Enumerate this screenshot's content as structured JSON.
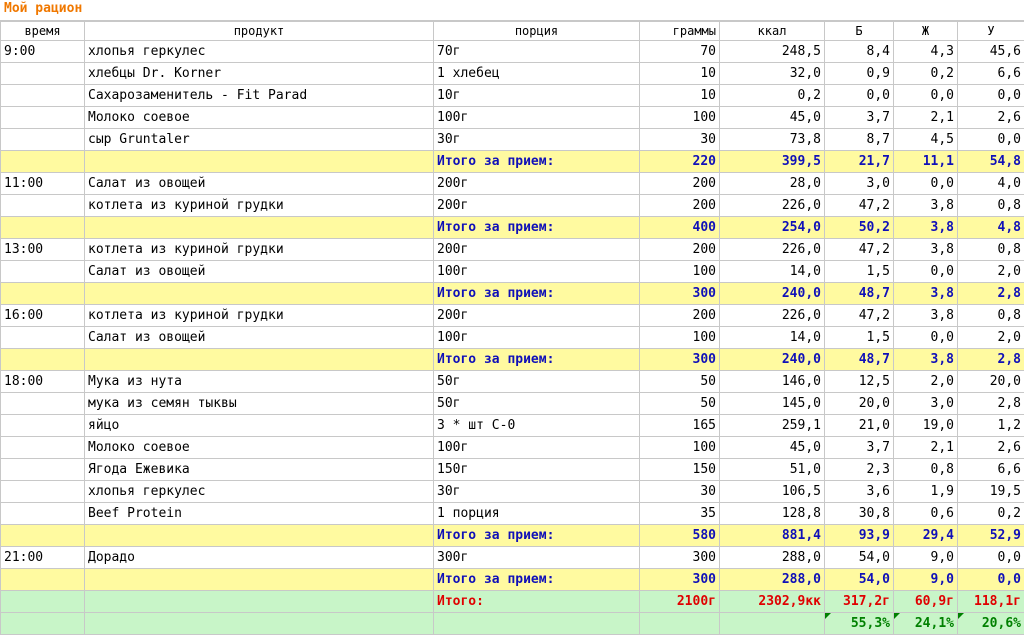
{
  "title": "Мой рацион",
  "columns": [
    "время",
    "продукт",
    "порция",
    "граммы",
    "ккал",
    "Б",
    "Ж",
    "У"
  ],
  "meals": [
    {
      "time": "9:00",
      "items": [
        [
          "хлопья геркулес",
          "70г",
          "70",
          "248,5",
          "8,4",
          "4,3",
          "45,6"
        ],
        [
          "хлебцы Dr. Korner",
          "1 хлебец",
          "10",
          "32,0",
          "0,9",
          "0,2",
          "6,6"
        ],
        [
          "Сахарозаменитель - Fit Parad",
          "10г",
          "10",
          "0,2",
          "0,0",
          "0,0",
          "0,0"
        ],
        [
          "Молоко соевое",
          "100г",
          "100",
          "45,0",
          "3,7",
          "2,1",
          "2,6"
        ],
        [
          "сыр Gruntaler",
          "30г",
          "30",
          "73,8",
          "8,7",
          "4,5",
          "0,0"
        ]
      ],
      "subtotal": {
        "label": "Итого за прием:",
        "grams": "220",
        "kcal": "399,5",
        "b": "21,7",
        "zh": "11,1",
        "u": "54,8"
      }
    },
    {
      "time": "11:00",
      "items": [
        [
          "Салат из овощей",
          "200г",
          "200",
          "28,0",
          "3,0",
          "0,0",
          "4,0"
        ],
        [
          "котлета из куриной грудки",
          "200г",
          "200",
          "226,0",
          "47,2",
          "3,8",
          "0,8"
        ]
      ],
      "subtotal": {
        "label": "Итого за прием:",
        "grams": "400",
        "kcal": "254,0",
        "b": "50,2",
        "zh": "3,8",
        "u": "4,8"
      }
    },
    {
      "time": "13:00",
      "items": [
        [
          "котлета из куриной грудки",
          "200г",
          "200",
          "226,0",
          "47,2",
          "3,8",
          "0,8"
        ],
        [
          "Салат из овощей",
          "100г",
          "100",
          "14,0",
          "1,5",
          "0,0",
          "2,0"
        ]
      ],
      "subtotal": {
        "label": "Итого за прием:",
        "grams": "300",
        "kcal": "240,0",
        "b": "48,7",
        "zh": "3,8",
        "u": "2,8"
      }
    },
    {
      "time": "16:00",
      "items": [
        [
          "котлета из куриной грудки",
          "200г",
          "200",
          "226,0",
          "47,2",
          "3,8",
          "0,8"
        ],
        [
          "Салат из овощей",
          "100г",
          "100",
          "14,0",
          "1,5",
          "0,0",
          "2,0"
        ]
      ],
      "subtotal": {
        "label": "Итого за прием:",
        "grams": "300",
        "kcal": "240,0",
        "b": "48,7",
        "zh": "3,8",
        "u": "2,8"
      }
    },
    {
      "time": "18:00",
      "items": [
        [
          "Мука из нута",
          "50г",
          "50",
          "146,0",
          "12,5",
          "2,0",
          "20,0"
        ],
        [
          "мука из семян тыквы",
          "50г",
          "50",
          "145,0",
          "20,0",
          "3,0",
          "2,8"
        ],
        [
          "яйцо",
          "3 * шт С-0",
          "165",
          "259,1",
          "21,0",
          "19,0",
          "1,2"
        ],
        [
          "Молоко соевое",
          "100г",
          "100",
          "45,0",
          "3,7",
          "2,1",
          "2,6"
        ],
        [
          "Ягода Ежевика",
          "150г",
          "150",
          "51,0",
          "2,3",
          "0,8",
          "6,6"
        ],
        [
          "хлопья геркулес",
          "30г",
          "30",
          "106,5",
          "3,6",
          "1,9",
          "19,5"
        ],
        [
          "Beef Protein",
          "1 порция",
          "35",
          "128,8",
          "30,8",
          "0,6",
          "0,2"
        ]
      ],
      "subtotal": {
        "label": "Итого за прием:",
        "grams": "580",
        "kcal": "881,4",
        "b": "93,9",
        "zh": "29,4",
        "u": "52,9"
      }
    },
    {
      "time": "21:00",
      "items": [
        [
          "Дорадо",
          "300г",
          "300",
          "288,0",
          "54,0",
          "9,0",
          "0,0"
        ]
      ],
      "subtotal": {
        "label": "Итого за прием:",
        "grams": "300",
        "kcal": "288,0",
        "b": "54,0",
        "zh": "9,0",
        "u": "0,0"
      }
    }
  ],
  "total": {
    "label": "Итого:",
    "grams": "2100г",
    "kcal": "2302,9кк",
    "b": "317,2г",
    "zh": "60,9г",
    "u": "118,1г"
  },
  "percent": {
    "b": "55,3%",
    "zh": "24,1%",
    "u": "20,6%"
  },
  "colors": {
    "title": "#f07800",
    "subtotal_bg": "#fffaa0",
    "subtotal_text": "#1010b8",
    "total_bg": "#c8f5c8",
    "total_text": "#e00000",
    "percent_text": "#008000"
  }
}
